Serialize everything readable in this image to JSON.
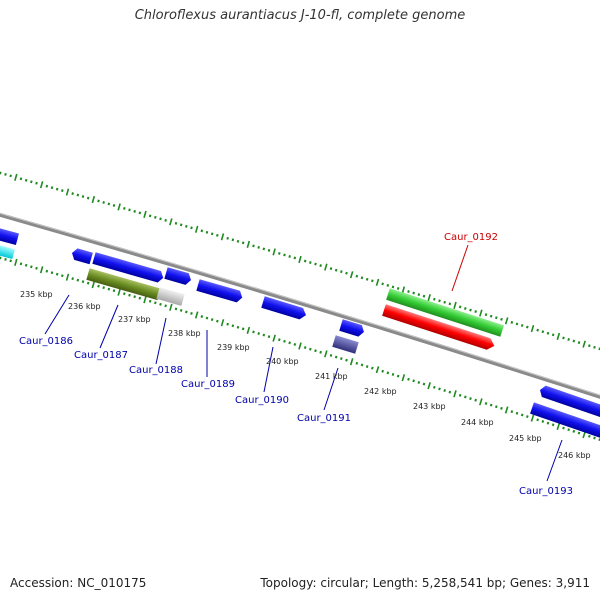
{
  "title": "Chloroflexus aurantiacus J-10-fl, complete genome",
  "footer": {
    "accession": "Accession: NC_010175",
    "topology": "Topology: circular; Length: 5,258,541 bp; Genes: 3,911"
  },
  "colors": {
    "forward_gene": "#1a1aff",
    "highlight_gene": "#3ad23a",
    "highlight_gene_rev": "#ff1010",
    "olive_gene": "#6b8e23",
    "cyan_gene": "#00f0f0",
    "purple_gene": "#4a4a9a",
    "tick": "#1f8a1f",
    "label_blue": "#0000aa",
    "label_red": "#cc0000"
  },
  "scale_labels": [
    "235 kbp",
    "236 kbp",
    "237 kbp",
    "238 kbp",
    "239 kbp",
    "240 kbp",
    "241 kbp",
    "242 kbp",
    "243 kbp",
    "244 kbp",
    "245 kbp",
    "246 kbp"
  ],
  "gene_labels": [
    {
      "text": "Caur_0186",
      "color": "blue"
    },
    {
      "text": "Caur_0187",
      "color": "blue"
    },
    {
      "text": "Caur_0188",
      "color": "blue"
    },
    {
      "text": "Caur_0189",
      "color": "blue"
    },
    {
      "text": "Caur_0190",
      "color": "blue"
    },
    {
      "text": "Caur_0191",
      "color": "blue"
    },
    {
      "text": "Caur_0192",
      "color": "red"
    },
    {
      "text": "Caur_0193",
      "color": "blue"
    }
  ]
}
